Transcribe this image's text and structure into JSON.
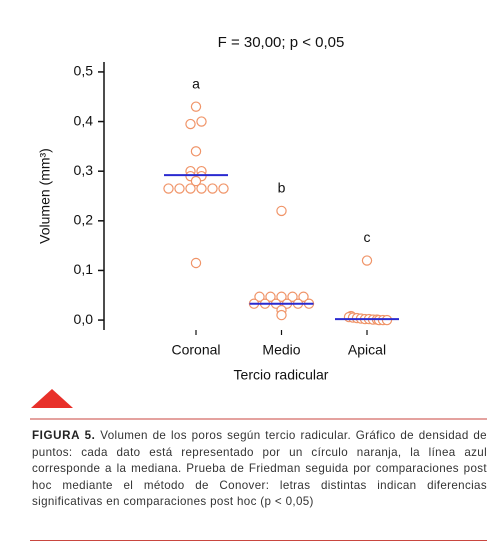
{
  "chart_data": {
    "type": "strip",
    "title": "F = 30,00; p < 0,05",
    "y_label": "Volumen (mm³)",
    "x_label": "Tercio radicular",
    "categories": [
      "Coronal",
      "Medio",
      "Apical"
    ],
    "annotations": [
      "a",
      "b",
      "c"
    ],
    "points": [
      [
        0.43,
        0.395,
        0.4,
        0.34,
        0.3,
        0.3,
        0.29,
        0.29,
        0.28,
        0.265,
        0.265,
        0.265,
        0.265,
        0.265,
        0.265,
        0.115
      ],
      [
        0.22,
        0.047,
        0.047,
        0.047,
        0.047,
        0.047,
        0.033,
        0.033,
        0.033,
        0.033,
        0.033,
        0.033,
        0.02,
        0.01
      ],
      [
        0.12,
        0.008,
        0.006,
        0.005,
        0.004,
        0.003,
        0.002,
        0.002,
        0.001,
        0.001,
        0,
        0,
        0
      ]
    ],
    "medians": [
      0.292,
      0.033,
      0.002
    ],
    "point_color": "#f09468",
    "median_color": "#2a2ad0",
    "ylim": [
      -0.02,
      0.52
    ],
    "yticks": [
      {
        "value": 0,
        "label": "0,0"
      },
      {
        "value": 0.1,
        "label": "0,1"
      },
      {
        "value": 0.2,
        "label": "0,2"
      },
      {
        "value": 0.3,
        "label": "0,3"
      },
      {
        "value": 0.4,
        "label": "0,4"
      },
      {
        "value": 0.5,
        "label": "0,5"
      }
    ]
  },
  "caption": {
    "label": "FIGURA 5.",
    "text": "Volumen de los poros según tercio radicular. Gráfico de densidad de puntos: cada dato está representado por un círculo naranja, la línea azul corresponde a la mediana. Prueba de Friedman seguida por comparaciones post hoc mediante el método de Conover: letras distintas indican diferencias significativas en comparaciones post hoc (p < 0,05)"
  }
}
